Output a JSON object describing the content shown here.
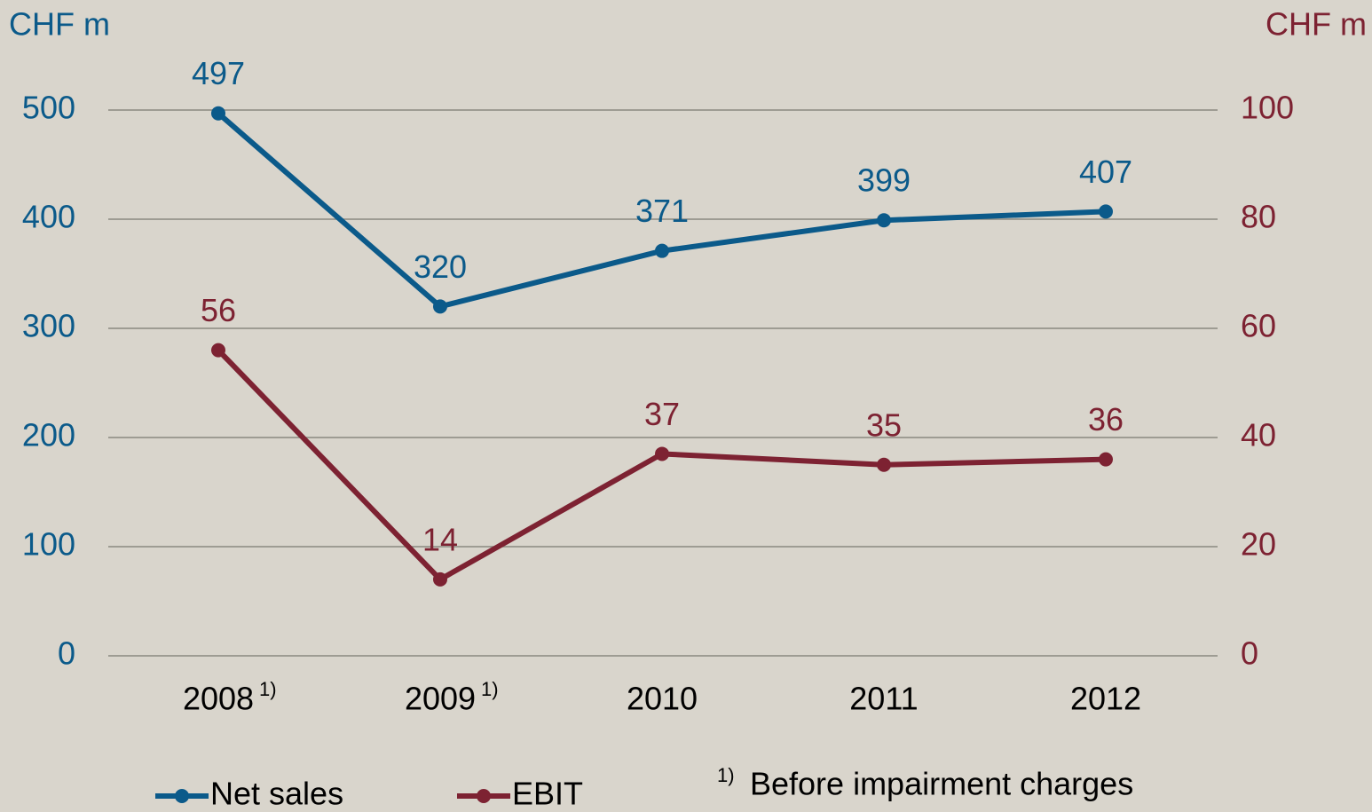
{
  "chart_data": {
    "type": "line",
    "y_label": "CHF m",
    "y2_label": "CHF m",
    "categories": [
      "2008",
      "2009",
      "2010",
      "2011",
      "2012"
    ],
    "category_footnotes": [
      "1)",
      "1)",
      null,
      null,
      null
    ],
    "series": [
      {
        "name": "Net sales",
        "color": "#0b5a8a",
        "values": [
          497,
          320,
          371,
          399,
          407
        ]
      },
      {
        "name": "EBIT",
        "color": "#7d2232",
        "axis": "y2",
        "values": [
          56,
          14,
          37,
          35,
          36
        ]
      }
    ],
    "ylim": [
      0,
      500
    ],
    "yticks": [
      0,
      100,
      200,
      300,
      400,
      500
    ],
    "y2lim": [
      0,
      100
    ],
    "y2ticks": [
      0,
      20,
      40,
      60,
      80,
      100
    ],
    "grid": true,
    "legend": "bottom",
    "footnote": {
      "marker": "1)",
      "text": "Before impairment charges"
    }
  }
}
